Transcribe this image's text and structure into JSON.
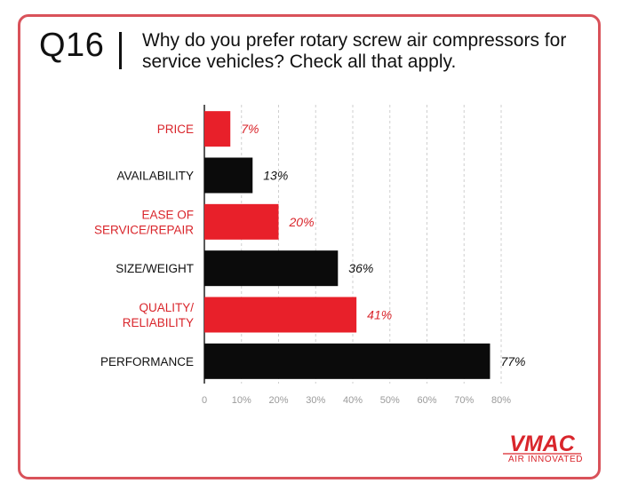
{
  "header": {
    "question_number": "Q16",
    "question_text": "Why do you prefer rotary screw air compressors for service vehicles? Check all that apply."
  },
  "colors": {
    "red": "#e8202a",
    "black": "#0b0b0b",
    "border": "#d9525a",
    "grid": "#cfcfcf"
  },
  "chart_data": {
    "type": "bar",
    "orientation": "horizontal",
    "categories": [
      [
        "PRICE"
      ],
      [
        "AVAILABILITY"
      ],
      [
        "EASE OF",
        "SERVICE/REPAIR"
      ],
      [
        "SIZE/WEIGHT"
      ],
      [
        "QUALITY/",
        "RELIABILITY"
      ],
      [
        "PERFORMANCE"
      ]
    ],
    "values": [
      7,
      13,
      20,
      36,
      41,
      77
    ],
    "value_labels": [
      "7%",
      "13%",
      "20%",
      "36%",
      "41%",
      "77%"
    ],
    "bar_colors": [
      "red",
      "black",
      "red",
      "black",
      "red",
      "black"
    ],
    "xlim": [
      0,
      80
    ],
    "xticks": [
      "0",
      "10%",
      "20%",
      "30%",
      "40%",
      "50%",
      "60%",
      "70%",
      "80%"
    ],
    "grid": true
  },
  "logo": {
    "wordmark": "VMAC",
    "tagline": "AIR INNOVATED"
  }
}
